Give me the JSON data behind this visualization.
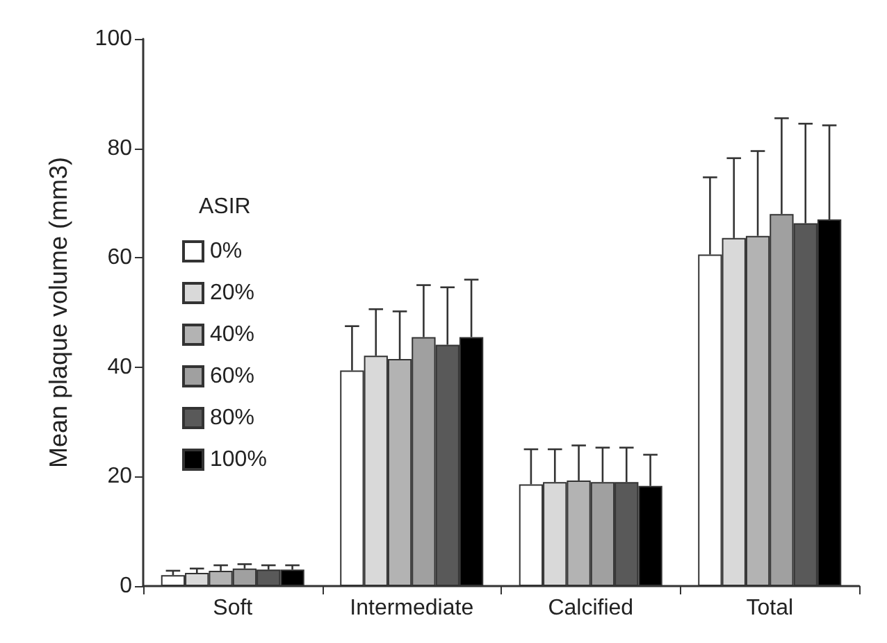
{
  "chart_data": {
    "type": "bar",
    "ylabel": "Mean plaque volume (mm3)",
    "legend_title": "ASIR",
    "categories": [
      "Soft",
      "Intermediate",
      "Calcified",
      "Total"
    ],
    "series": [
      {
        "name": "0%",
        "color": "#ffffff",
        "values": [
          2.0,
          39.4,
          18.6,
          60.6
        ],
        "errors": [
          0.8,
          8.1,
          6.4,
          14.1
        ]
      },
      {
        "name": "20%",
        "color": "#d9d9d9",
        "values": [
          2.4,
          42.1,
          19.0,
          63.6
        ],
        "errors": [
          0.8,
          8.5,
          6.0,
          14.6
        ]
      },
      {
        "name": "40%",
        "color": "#b3b3b3",
        "values": [
          2.8,
          41.5,
          19.3,
          64.0
        ],
        "errors": [
          1.0,
          8.7,
          6.4,
          15.5
        ]
      },
      {
        "name": "60%",
        "color": "#a0a0a0",
        "values": [
          3.2,
          45.5,
          19.0,
          68.0
        ],
        "errors": [
          0.8,
          9.5,
          6.3,
          17.5
        ]
      },
      {
        "name": "80%",
        "color": "#595959",
        "values": [
          3.0,
          44.1,
          19.0,
          66.3
        ],
        "errors": [
          0.8,
          10.5,
          6.3,
          18.2
        ]
      },
      {
        "name": "100%",
        "color": "#000000",
        "values": [
          3.0,
          45.5,
          18.3,
          67.0
        ],
        "errors": [
          0.8,
          10.5,
          5.7,
          17.2
        ]
      }
    ],
    "ylim": [
      0,
      100
    ],
    "yticks": [
      0,
      20,
      40,
      60,
      80,
      100
    ],
    "grid": false,
    "legend": "left"
  }
}
